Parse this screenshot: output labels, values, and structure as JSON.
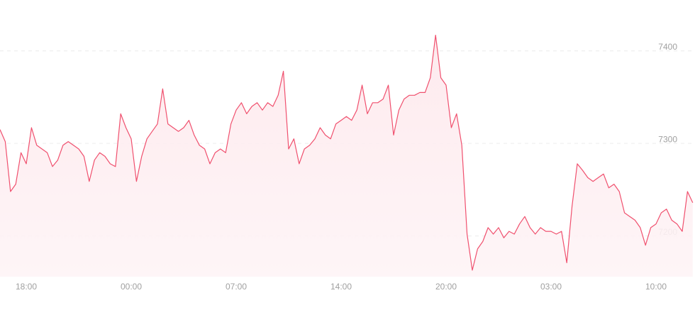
{
  "chart_data": {
    "type": "line",
    "categories": [
      null,
      null,
      null,
      null,
      null,
      "18:00",
      null,
      null,
      null,
      null,
      null,
      null,
      null,
      null,
      null,
      null,
      null,
      null,
      null,
      null,
      null,
      null,
      null,
      null,
      null,
      "00:00",
      null,
      null,
      null,
      null,
      null,
      null,
      null,
      null,
      null,
      null,
      null,
      null,
      null,
      null,
      null,
      null,
      null,
      null,
      null,
      "07:00",
      null,
      null,
      null,
      null,
      null,
      null,
      null,
      null,
      null,
      null,
      null,
      null,
      null,
      null,
      null,
      null,
      null,
      null,
      null,
      "14:00",
      null,
      null,
      null,
      null,
      null,
      null,
      null,
      null,
      null,
      null,
      null,
      null,
      null,
      null,
      null,
      null,
      null,
      null,
      null,
      "20:00",
      null,
      null,
      null,
      null,
      null,
      null,
      null,
      null,
      null,
      null,
      null,
      null,
      null,
      null,
      null,
      null,
      null,
      null,
      null,
      "03:00",
      null,
      null,
      null,
      null,
      null,
      null,
      null,
      null,
      null,
      null,
      null,
      null,
      null,
      null,
      null,
      null,
      null,
      null,
      null,
      "10:00",
      null,
      null,
      null,
      null,
      null,
      null,
      null
    ],
    "values": [
      7315,
      7302,
      7248,
      7256,
      7290,
      7278,
      7317,
      7298,
      7294,
      7290,
      7275,
      7282,
      7298,
      7302,
      7298,
      7294,
      7286,
      7259,
      7282,
      7290,
      7286,
      7278,
      7275,
      7332,
      7317,
      7305,
      7259,
      7286,
      7305,
      7313,
      7321,
      7359,
      7321,
      7317,
      7313,
      7317,
      7325,
      7309,
      7298,
      7294,
      7278,
      7290,
      7294,
      7290,
      7321,
      7336,
      7344,
      7332,
      7340,
      7344,
      7336,
      7344,
      7340,
      7352,
      7378,
      7294,
      7305,
      7278,
      7294,
      7298,
      7305,
      7317,
      7309,
      7305,
      7321,
      7325,
      7329,
      7325,
      7336,
      7363,
      7332,
      7344,
      7344,
      7348,
      7363,
      7309,
      7336,
      7348,
      7352,
      7352,
      7355,
      7355,
      7371,
      7417,
      7371,
      7363,
      7317,
      7332,
      7298,
      7202,
      7163,
      7186,
      7194,
      7209,
      7202,
      7209,
      7198,
      7205,
      7202,
      7213,
      7221,
      7209,
      7202,
      7209,
      7205,
      7205,
      7202,
      7205,
      7171,
      7232,
      7278,
      7271,
      7263,
      7259,
      7263,
      7267,
      7252,
      7256,
      7248,
      7225,
      7221,
      7217,
      7209,
      7190,
      7209,
      7213,
      7225,
      7229,
      7217,
      7213,
      7205,
      7248,
      7236
    ],
    "color": "#f0506e",
    "ylim": [
      7156,
      7455
    ],
    "yticks": [
      7200,
      7300,
      7400
    ],
    "grid": true
  }
}
